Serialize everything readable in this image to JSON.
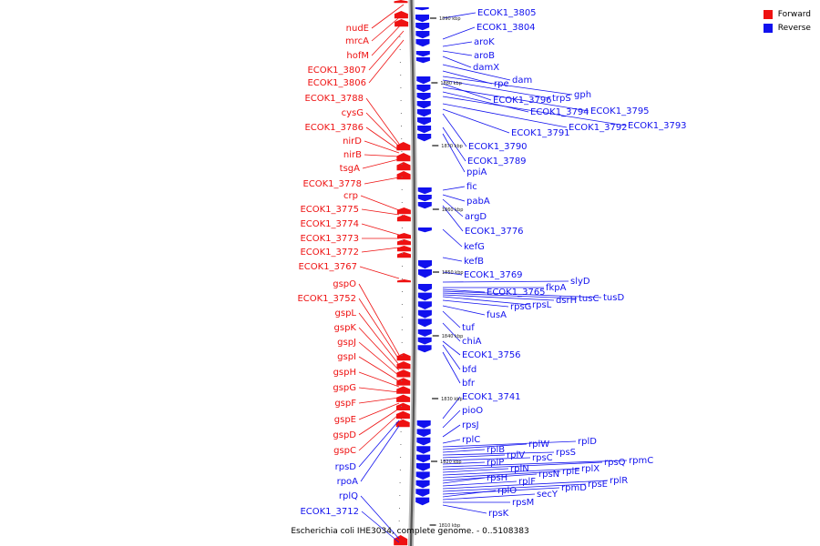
{
  "caption": "Escherichia coli IHE3034, complete genome. - 0..5108383",
  "legend": {
    "forward": {
      "label": "Forward",
      "color": "#ee1111"
    },
    "reverse": {
      "label": "Reverse",
      "color": "#1111ee"
    }
  },
  "scale_ticks": [
    "1890 kbp",
    "1880 kbp",
    "1870 kbp",
    "1860 kbp",
    "1850 kbp",
    "1840 kbp",
    "1830 kbp",
    "1820 kbp",
    "1810 kbp"
  ],
  "forward_genes": [
    "nudE",
    "mrcA",
    "hofM",
    "ECOK1_3807",
    "ECOK1_3806",
    "ECOK1_3788",
    "cysG",
    "ECOK1_3786",
    "nirD",
    "nirB",
    "tsgA",
    "ECOK1_3778",
    "crp",
    "ECOK1_3775",
    "ECOK1_3774",
    "ECOK1_3773",
    "ECOK1_3772",
    "ECOK1_3767",
    "gspO",
    "ECOK1_3752",
    "gspL",
    "gspK",
    "gspJ",
    "gspI",
    "gspH",
    "gspG",
    "gspF",
    "gspE",
    "gspD",
    "gspC",
    "rpsD",
    "rpoA",
    "rplQ",
    "ECOK1_3712"
  ],
  "reverse_genes": [
    "ECOK1_3805",
    "ECOK1_3804",
    "aroK",
    "aroB",
    "damX",
    "dam",
    "rpe",
    "gph",
    "trpS",
    "ECOK1_3796",
    "ECOK1_3795",
    "ECOK1_3794",
    "ECOK1_3793",
    "ECOK1_3792",
    "ECOK1_3791",
    "ECOK1_3790",
    "ECOK1_3789",
    "ppiA",
    "fic",
    "pabA",
    "argD",
    "ECOK1_3776",
    "kefG",
    "kefB",
    "ECOK1_3769",
    "slyD",
    "fkpA",
    "ECOK1_3765",
    "tusD",
    "tusC",
    "dsrH",
    "rpsL",
    "rpsG",
    "fusA",
    "tuf",
    "chiA",
    "ECOK1_3756",
    "bfd",
    "bfr",
    "ECOK1_3741",
    "pioO",
    "rpsJ",
    "rplC",
    "rplD",
    "rplW",
    "rplB",
    "rpsS",
    "rplV",
    "rpsC",
    "rplP",
    "rpmC",
    "rpsQ",
    "rplN",
    "rplX",
    "rplE",
    "rpsN",
    "rpsH",
    "rplF",
    "rplR",
    "rpsE",
    "rpmD",
    "rplO",
    "secY",
    "rpsM",
    "rpsK"
  ]
}
